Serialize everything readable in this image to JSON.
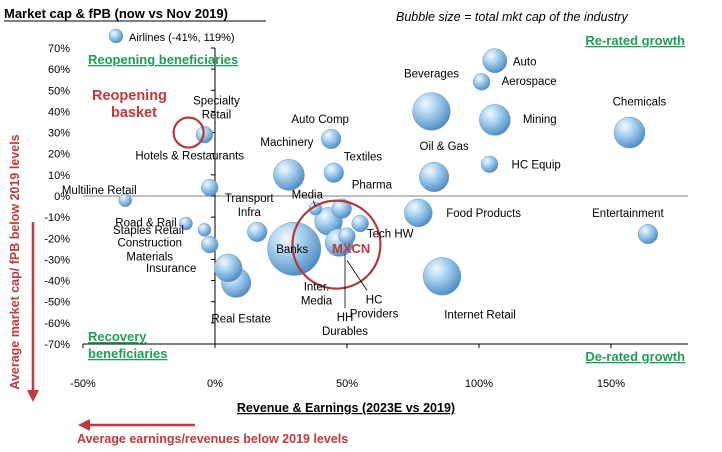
{
  "chart_data": {
    "type": "scatter",
    "title": "Market cap & fPB (now vs Nov 2019)",
    "note": "Bubble size = total mkt cap of the industry",
    "xlabel": "Revenue & Earnings (2023E vs 2019)",
    "ylabel": "Average market cap/ fPB below 2019 levels",
    "x_arrow_label": "Average earnings/revenues below 2019 levels",
    "xlim": [
      -50,
      170
    ],
    "ylim": [
      -70,
      70
    ],
    "x_ticks": [
      -50,
      0,
      50,
      100,
      150
    ],
    "x_tick_labels": [
      "-50%",
      "0%",
      "50%",
      "100%",
      "150%"
    ],
    "y_ticks": [
      -70,
      -60,
      -50,
      -40,
      -30,
      -20,
      -10,
      0,
      10,
      20,
      30,
      40,
      50,
      60,
      70
    ],
    "y_tick_labels": [
      "-70%",
      "-60%",
      "-50%",
      "-40%",
      "-30%",
      "-20%",
      "-10%",
      "0%",
      "10%",
      "20%",
      "30%",
      "40%",
      "50%",
      "60%",
      "70%"
    ],
    "grid": false,
    "legend": {
      "label": "Airlines (-41%, 119%)",
      "position": "top-left"
    },
    "quadrant_labels": {
      "top_left": "Reopening beneficiaries",
      "top_right": "Re-rated growth",
      "bottom_left_1": "Recovery",
      "bottom_left_2": "beneficiaries",
      "bottom_right": "De-rated growth"
    },
    "highlights": {
      "reopening_label_1": "Reopening",
      "reopening_label_2": "basket",
      "mxcn_label": "MXCN"
    },
    "points": [
      {
        "name": "Auto",
        "x": 106,
        "y": 64,
        "size": 5
      },
      {
        "name": "Aerospace",
        "x": 101,
        "y": 54,
        "size": 2
      },
      {
        "name": "Beverages",
        "x": 82,
        "y": 40,
        "size": 14
      },
      {
        "name": "Mining",
        "x": 106,
        "y": 36,
        "size": 9
      },
      {
        "name": "Chemicals",
        "x": 157,
        "y": 30,
        "size": 9
      },
      {
        "name": "Specialty Retail",
        "x": -4,
        "y": 29,
        "size": 2
      },
      {
        "name": "Auto Comp",
        "x": 44,
        "y": 27,
        "size": 3
      },
      {
        "name": "Textiles",
        "x": 45,
        "y": 11,
        "size": 3
      },
      {
        "name": "Machinery",
        "x": 28,
        "y": 10,
        "size": 9
      },
      {
        "name": "Oil & Gas",
        "x": 83,
        "y": 9,
        "size": 8
      },
      {
        "name": "HC Equip",
        "x": 104,
        "y": 15,
        "size": 2
      },
      {
        "name": "Hotels & Restaurants",
        "x": -2,
        "y": 4,
        "size": 2
      },
      {
        "name": "Multiline Retail",
        "x": -34,
        "y": -2,
        "size": 1
      },
      {
        "name": "Media",
        "x": 38,
        "y": -6,
        "size": 1
      },
      {
        "name": "Pharma",
        "x": 48,
        "y": -6,
        "size": 3
      },
      {
        "name": "Transport Infra",
        "x": 16,
        "y": -17,
        "size": 3
      },
      {
        "name": "Food Products",
        "x": 77,
        "y": -8,
        "size": 7
      },
      {
        "name": "Entertainment",
        "x": 164,
        "y": -18,
        "size": 3
      },
      {
        "name": "Road & Rail",
        "x": -11,
        "y": -13,
        "size": 1
      },
      {
        "name": "Staples Retail",
        "x": -4,
        "y": -16,
        "size": 1
      },
      {
        "name": "Construction Materials",
        "x": -2,
        "y": -23,
        "size": 2
      },
      {
        "name": "Banks",
        "x": 30,
        "y": -25,
        "size": 30
      },
      {
        "name": "Inter. Media",
        "x": 43,
        "y": -12,
        "size": 7
      },
      {
        "name": "HH Durables",
        "x": 50,
        "y": -19,
        "size": 2
      },
      {
        "name": "HC Providers",
        "x": 47,
        "y": -22,
        "size": 7
      },
      {
        "name": "Tech HW",
        "x": 55,
        "y": -13,
        "size": 2
      },
      {
        "name": "Insurance",
        "x": 5,
        "y": -34,
        "size": 7
      },
      {
        "name": "Real Estate",
        "x": 8,
        "y": -41,
        "size": 8
      },
      {
        "name": "Internet Retail",
        "x": 86,
        "y": -38,
        "size": 14
      }
    ],
    "circles": [
      {
        "name": "Reopening basket",
        "x": -10,
        "y": 30
      },
      {
        "name": "MXCN",
        "x": 46,
        "y": -23
      }
    ]
  }
}
